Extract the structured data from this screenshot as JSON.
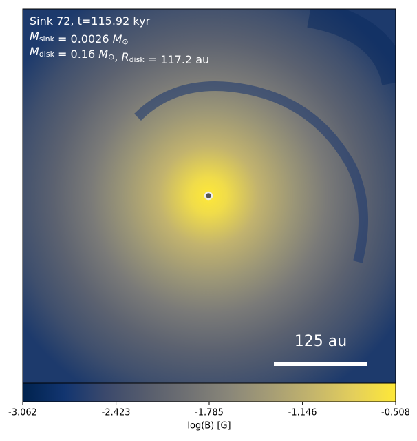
{
  "chart_data": {
    "type": "image",
    "annotations": [
      [
        {
          "text": "Sink 72, t=115.92 kyr"
        }
      ],
      [
        {
          "text": "M",
          "italic": true
        },
        {
          "sub": "sink"
        },
        {
          "text": " = 0.0026 "
        },
        {
          "text": "M",
          "italic": true
        },
        {
          "sub": "⊙"
        }
      ],
      [
        {
          "text": "M",
          "italic": true
        },
        {
          "sub": "disk"
        },
        {
          "text": " = 0.16 "
        },
        {
          "text": "M",
          "italic": true
        },
        {
          "sub": "⊙"
        },
        {
          "text": ", "
        },
        {
          "text": "R",
          "italic": true
        },
        {
          "sub": "disk"
        },
        {
          "text": " = 117.2 au"
        }
      ]
    ],
    "scale_bar_label": "125 au",
    "colorbar": {
      "label": "log(B) [G]",
      "clim": [
        -3.062,
        -0.508
      ],
      "ticks": [
        -3.062,
        -2.423,
        -1.785,
        -1.146,
        -0.508
      ],
      "colors": [
        "#00224e",
        "#123570",
        "#3b496c",
        "#575d6d",
        "#707173",
        "#8a8779",
        "#a69d75",
        "#c4b56c",
        "#e4cf5b",
        "#fee838"
      ]
    }
  }
}
